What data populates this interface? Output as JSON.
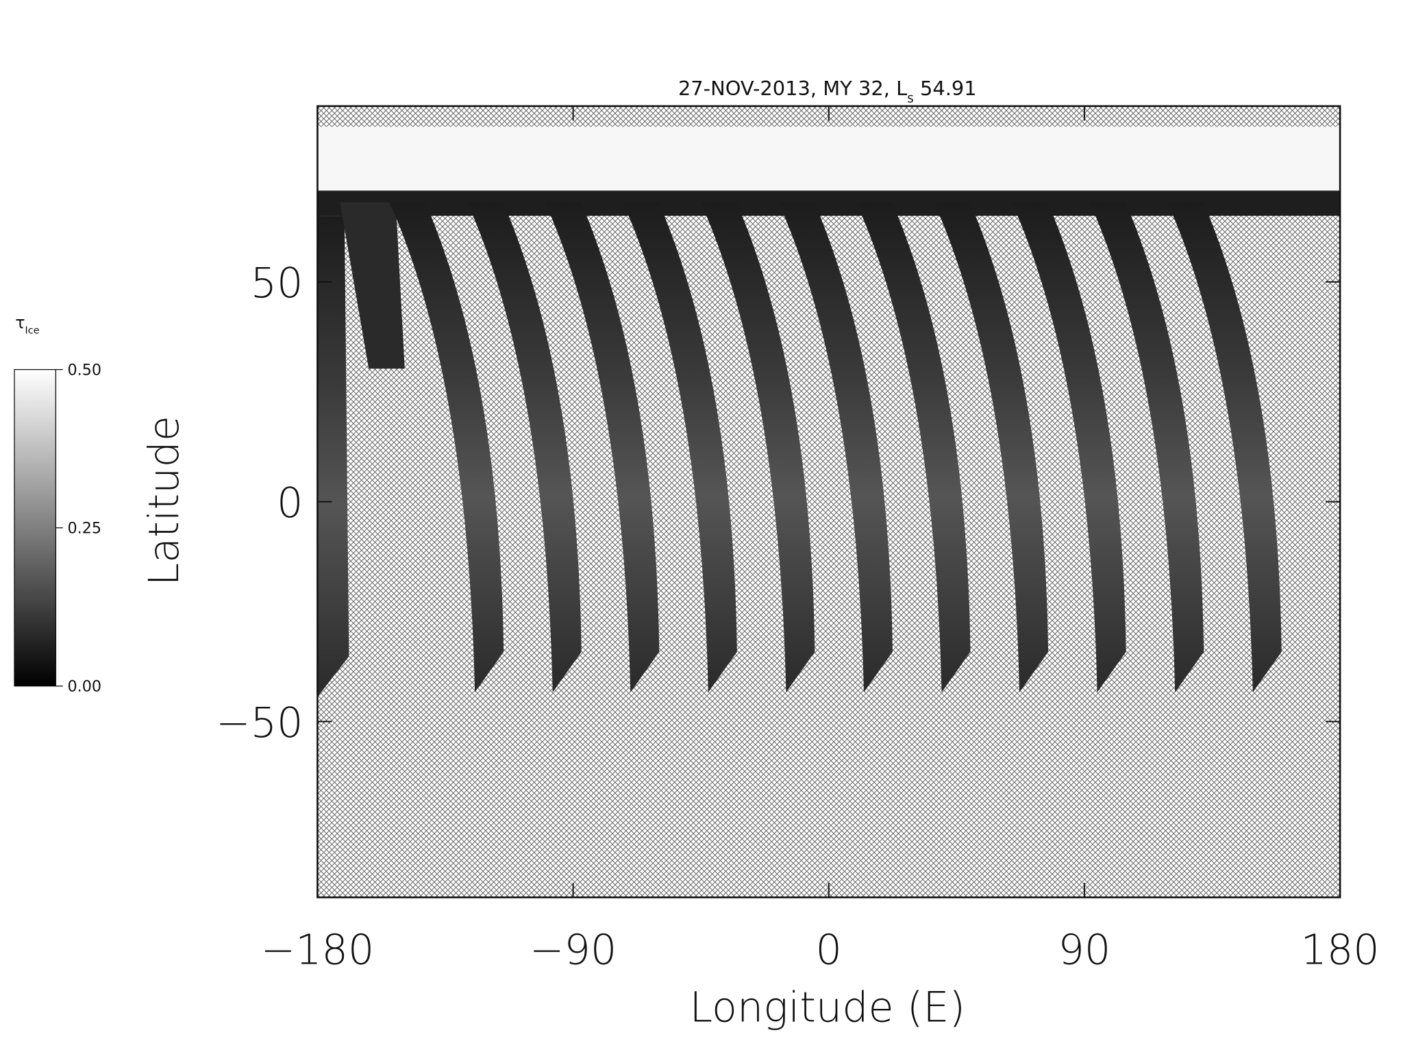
{
  "chart_data": {
    "type": "map",
    "title": {
      "text": "27-NOV-2013, MY 32,",
      "ls_symbol": "L",
      "ls_subscript": "s",
      "ls_value": "54.91"
    },
    "x_label": "Longitude (E)",
    "y_label": "Latitude",
    "xlim": [
      -180,
      180
    ],
    "xticks": [
      {
        "value": -180,
        "label": "−180"
      },
      {
        "value": -90,
        "label": "−90"
      },
      0,
      90,
      180
    ],
    "ylim": [
      -90,
      90
    ],
    "yticks": [
      {
        "value": -50,
        "label": "−50"
      },
      0,
      50
    ],
    "colorbar": {
      "label": "τ",
      "label_subscript": "Ice",
      "clim": [
        0,
        0.5
      ],
      "colors": [
        "#000000",
        "#ffffff"
      ],
      "ticks": [
        {
          "value": 0,
          "label": "0.00"
        },
        {
          "value": 0.25,
          "label": "0.25"
        },
        {
          "value": 0.5,
          "label": "0.50"
        }
      ]
    }
  }
}
